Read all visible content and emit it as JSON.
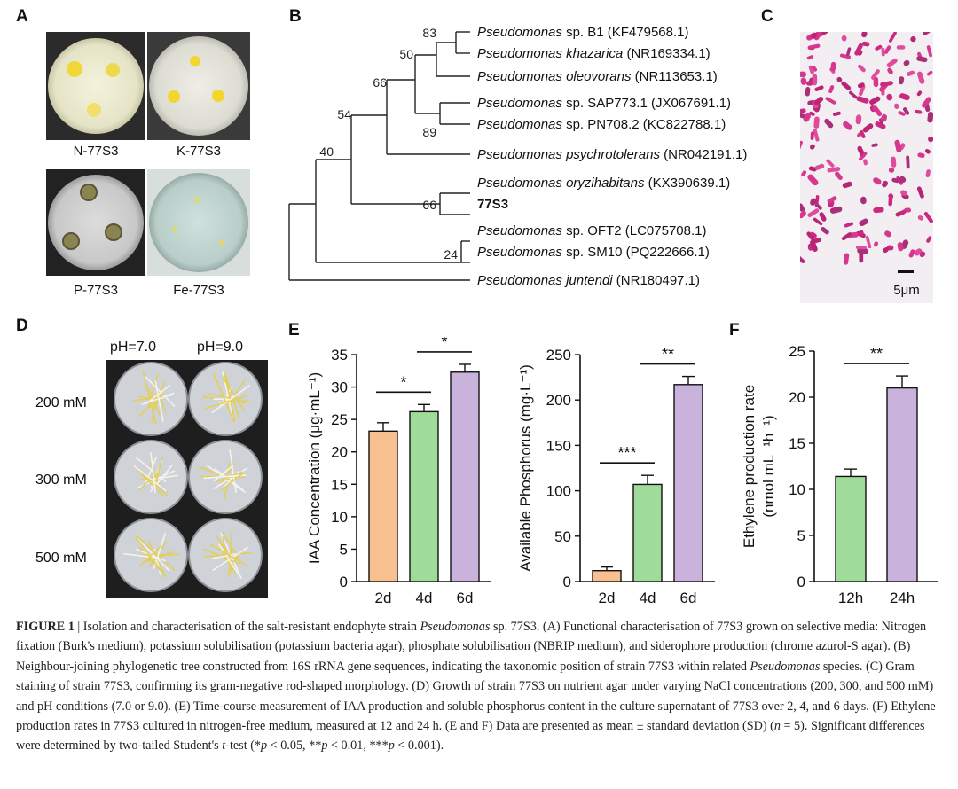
{
  "figure": {
    "panel_letters": {
      "A": "A",
      "B": "B",
      "C": "C",
      "D": "D",
      "E": "E",
      "F": "F"
    },
    "panel_a": {
      "labels": [
        "N-77S3",
        "K-77S3",
        "P-77S3",
        "Fe-77S3"
      ]
    },
    "panel_b": {
      "taxa": [
        {
          "genus": "Pseudomonas",
          "rest": " sp. B1 (KF479568.1)",
          "rest_italic": false
        },
        {
          "genus": "Pseudomonas",
          "rest": " khazarica",
          "rest_italic": true,
          "acc": " (NR169334.1)"
        },
        {
          "genus": "Pseudomonas",
          "rest": " oleovorans",
          "rest_italic": true,
          "acc": " (NR113653.1)"
        },
        {
          "genus": "Pseudomonas",
          "rest": " sp. SAP773.1 (JX067691.1)",
          "rest_italic": false
        },
        {
          "genus": "Pseudomonas",
          "rest": " sp. PN708.2 (KC822788.1)",
          "rest_italic": false
        },
        {
          "genus": "Pseudomonas",
          "rest": " psychrotolerans",
          "rest_italic": true,
          "acc": " (NR042191.1)"
        },
        {
          "genus": "Pseudomonas",
          "rest": " oryzihabitans",
          "rest_italic": true,
          "acc": " (KX390639.1)"
        },
        {
          "genus": "77S3",
          "rest": "",
          "rest_italic": false,
          "bold": true
        },
        {
          "genus": "Pseudomonas",
          "rest": " sp. OFT2 (LC075708.1)",
          "rest_italic": false
        },
        {
          "genus": "Pseudomonas",
          "rest": " sp. SM10 (PQ222666.1)",
          "rest_italic": false
        },
        {
          "genus": "Pseudomonas",
          "rest": " juntendi",
          "rest_italic": true,
          "acc": " (NR180497.1)"
        }
      ],
      "bootstrap": [
        "83",
        "50",
        "66",
        "54",
        "89",
        "40",
        "66",
        "24"
      ]
    },
    "panel_c": {
      "scale_label": "5μm"
    },
    "panel_d": {
      "columns": [
        "pH=7.0",
        "pH=9.0"
      ],
      "rows": [
        "200 mM",
        "300 mM",
        "500 mM"
      ]
    }
  },
  "chart_data": [
    {
      "type": "bar",
      "panel": "E",
      "title": "",
      "ylabel": "IAA Concentration (μg·mL⁻¹)",
      "categories": [
        "2d",
        "4d",
        "6d"
      ],
      "values": [
        23.2,
        26.2,
        32.3
      ],
      "errors": [
        1.3,
        1.1,
        1.2
      ],
      "ylim": [
        0,
        35
      ],
      "yticks": [
        "0",
        "5",
        "10",
        "15",
        "20",
        "25",
        "30",
        "35"
      ],
      "colors": [
        "#f8c08f",
        "#9fdc9c",
        "#c9b2db"
      ],
      "significance": [
        {
          "from": 0,
          "to": 1,
          "label": "*"
        },
        {
          "from": 1,
          "to": 2,
          "label": "*"
        }
      ]
    },
    {
      "type": "bar",
      "panel": "E",
      "title": "",
      "ylabel": "Available Phosphorus (mg·L⁻¹)",
      "categories": [
        "2d",
        "4d",
        "6d"
      ],
      "values": [
        12,
        107,
        217
      ],
      "errors": [
        4,
        10,
        9
      ],
      "ylim": [
        0,
        250
      ],
      "yticks": [
        "0",
        "50",
        "100",
        "150",
        "200",
        "250"
      ],
      "colors": [
        "#f8c08f",
        "#9fdc9c",
        "#c9b2db"
      ],
      "significance": [
        {
          "from": 0,
          "to": 1,
          "label": "***"
        },
        {
          "from": 1,
          "to": 2,
          "label": "**"
        }
      ]
    },
    {
      "type": "bar",
      "panel": "F",
      "title": "",
      "ylabel": "Ethylene production rate",
      "ylabel2": "(nmol mL⁻¹h⁻¹)",
      "categories": [
        "12h",
        "24h"
      ],
      "values": [
        11.4,
        21.0
      ],
      "errors": [
        0.8,
        1.3
      ],
      "ylim": [
        0,
        25
      ],
      "yticks": [
        "0",
        "5",
        "10",
        "15",
        "20",
        "25"
      ],
      "colors": [
        "#9fdc9c",
        "#c9b2db"
      ],
      "significance": [
        {
          "from": 0,
          "to": 1,
          "label": "**"
        }
      ]
    }
  ],
  "caption": {
    "label": "FIGURE 1",
    "sep": " | ",
    "text_1": "Isolation and characterisation of the salt-resistant endophyte strain ",
    "species": "Pseudomonas",
    "text_2": " sp. 77S3. (A) Functional characterisation of 77S3 grown on selective media: Nitrogen fixation (Burk's medium), potassium solubilisation (potassium bacteria agar), phosphate solubilisation (NBRIP medium), and siderophore production (chrome azurol-S agar). (B) Neighbour-joining phylogenetic tree constructed from 16S rRNA gene sequences, indicating the taxonomic position of strain 77S3 within related ",
    "species2": "Pseudomonas",
    "text_3": " species. (C) Gram staining of strain 77S3, confirming its gram-negative rod-shaped morphology. (D) Growth of strain 77S3 on nutrient agar under varying NaCl concentrations (200, 300, and 500 mM) and pH conditions (7.0 or 9.0). (E) Time-course measurement of IAA production and soluble phosphorus content in the culture supernatant of 77S3 over 2, 4, and 6 days. (F) Ethylene production rates in 77S3 cultured in nitrogen-free medium, measured at 12 and 24 h. (E and F) Data are presented as mean ± standard deviation (SD) (",
    "n_var": "n",
    "text_4": " = 5). Significant differences were determined by two-tailed Student's ",
    "t_var": "t",
    "text_5": "-test (*",
    "p1": "p",
    "text_6": " < 0.05, **",
    "p2": "p",
    "text_7": " < 0.01, ***",
    "p3": "p",
    "text_8": " < 0.001)."
  }
}
